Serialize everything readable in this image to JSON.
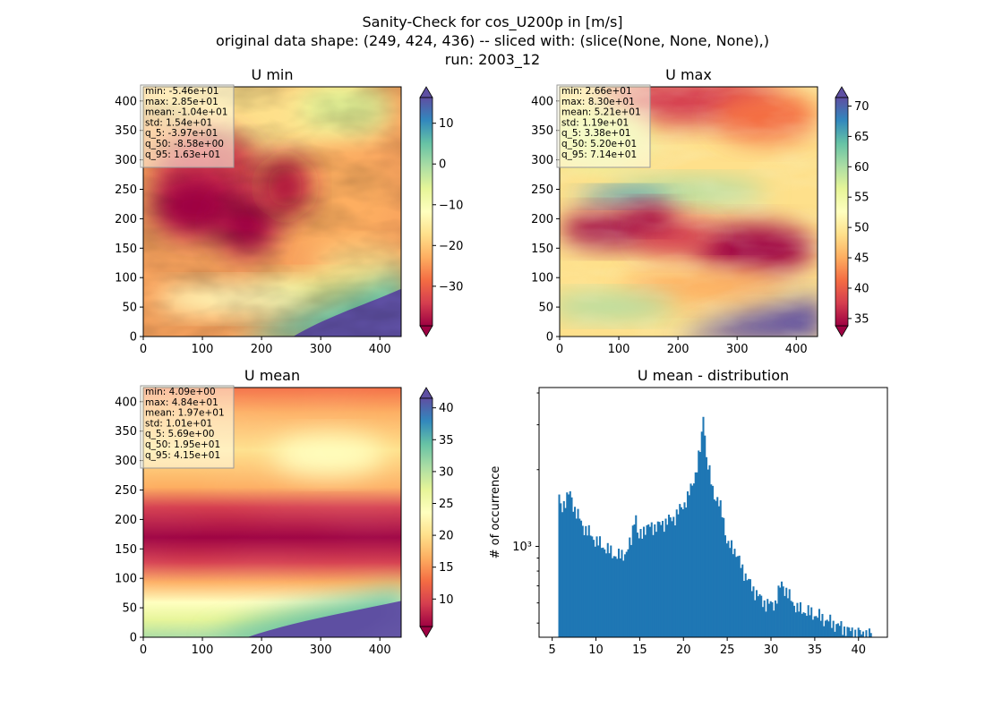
{
  "figure": {
    "title_lines": [
      "Sanity-Check for cos_U200p in [m/s]",
      "original data shape: (249, 424, 436) -- sliced with: (slice(None, None, None),)",
      "run: 2003_12"
    ]
  },
  "chart_data": [
    {
      "type": "heatmap",
      "title": "U min",
      "colormap": "Spectral",
      "xlim": [
        0,
        436
      ],
      "ylim": [
        0,
        424
      ],
      "xticks": [
        0,
        100,
        200,
        300,
        400
      ],
      "yticks": [
        0,
        50,
        100,
        150,
        200,
        250,
        300,
        350,
        400
      ],
      "colorbar": {
        "range": [
          -39.7,
          16.3
        ],
        "ticks": [
          -30,
          -20,
          -10,
          0,
          10
        ],
        "tick_labels": [
          "−30",
          "−20",
          "−10",
          "0",
          "10"
        ],
        "extend": "both"
      },
      "stats": [
        "min: -5.46e+01",
        "max: 2.85e+01",
        "mean: -1.04e+01",
        "std: 1.54e+01",
        "q_5: -3.97e+01",
        "q_50: -8.58e+00",
        "q_95: 1.63e+01"
      ]
    },
    {
      "type": "heatmap",
      "title": "U max",
      "colormap": "Spectral",
      "xlim": [
        0,
        436
      ],
      "ylim": [
        0,
        424
      ],
      "xticks": [
        0,
        100,
        200,
        300,
        400
      ],
      "yticks": [
        0,
        50,
        100,
        150,
        200,
        250,
        300,
        350,
        400
      ],
      "colorbar": {
        "range": [
          33.8,
          71.4
        ],
        "ticks": [
          35,
          40,
          45,
          50,
          55,
          60,
          65,
          70
        ],
        "tick_labels": [
          "35",
          "40",
          "45",
          "50",
          "55",
          "60",
          "65",
          "70"
        ],
        "extend": "both"
      },
      "stats": [
        "min: 2.66e+01",
        "max: 8.30e+01",
        "mean: 5.21e+01",
        "std: 1.19e+01",
        "q_5: 3.38e+01",
        "q_50: 5.20e+01",
        "q_95: 7.14e+01"
      ]
    },
    {
      "type": "heatmap",
      "title": "U mean",
      "colormap": "Spectral",
      "xlim": [
        0,
        436
      ],
      "ylim": [
        0,
        424
      ],
      "xticks": [
        0,
        100,
        200,
        300,
        400
      ],
      "yticks": [
        0,
        50,
        100,
        150,
        200,
        250,
        300,
        350,
        400
      ],
      "colorbar": {
        "range": [
          5.69,
          41.5
        ],
        "ticks": [
          10,
          15,
          20,
          25,
          30,
          35,
          40
        ],
        "tick_labels": [
          "10",
          "15",
          "20",
          "25",
          "30",
          "35",
          "40"
        ],
        "extend": "both"
      },
      "stats": [
        "min: 4.09e+00",
        "max: 4.84e+01",
        "mean: 1.97e+01",
        "std: 1.01e+01",
        "q_5: 5.69e+00",
        "q_50: 1.95e+01",
        "q_95: 4.15e+01"
      ]
    },
    {
      "type": "bar",
      "title": "U mean - distribution",
      "xlabel": "",
      "ylabel": "# of occurrence",
      "yscale": "log",
      "color": "#1f77b4",
      "xlim": [
        3.5,
        43.3
      ],
      "ylim": [
        440,
        4200
      ],
      "xticks": [
        5,
        10,
        15,
        20,
        25,
        30,
        35,
        40
      ],
      "yticks_major": [
        1000
      ],
      "ytick_major_labels": [
        "10³"
      ],
      "yticks_minor": [
        500,
        600,
        700,
        800,
        900,
        2000,
        3000,
        4000
      ],
      "hist_key_points": [
        [
          5.7,
          1620
        ],
        [
          6.0,
          1400
        ],
        [
          6.5,
          1520
        ],
        [
          7.0,
          1620
        ],
        [
          7.5,
          1420
        ],
        [
          8.5,
          1200
        ],
        [
          10.0,
          1050
        ],
        [
          11.5,
          960
        ],
        [
          12.5,
          910
        ],
        [
          13.5,
          950
        ],
        [
          14.0,
          1040
        ],
        [
          14.5,
          1400
        ],
        [
          14.8,
          1050
        ],
        [
          15.5,
          1180
        ],
        [
          17.0,
          1200
        ],
        [
          19.0,
          1300
        ],
        [
          20.5,
          1550
        ],
        [
          21.5,
          2000
        ],
        [
          22.0,
          2500
        ],
        [
          22.3,
          3500
        ],
        [
          22.6,
          2200
        ],
        [
          23.5,
          1600
        ],
        [
          24.5,
          1350
        ],
        [
          25.0,
          1000
        ],
        [
          25.7,
          1000
        ],
        [
          26.5,
          850
        ],
        [
          27.5,
          720
        ],
        [
          28.5,
          640
        ],
        [
          29.5,
          590
        ],
        [
          30.5,
          600
        ],
        [
          31.2,
          720
        ],
        [
          32.0,
          640
        ],
        [
          33.0,
          570
        ],
        [
          35.0,
          540
        ],
        [
          37.0,
          500
        ],
        [
          39.0,
          465
        ],
        [
          40.5,
          455
        ],
        [
          41.5,
          450
        ]
      ]
    }
  ]
}
